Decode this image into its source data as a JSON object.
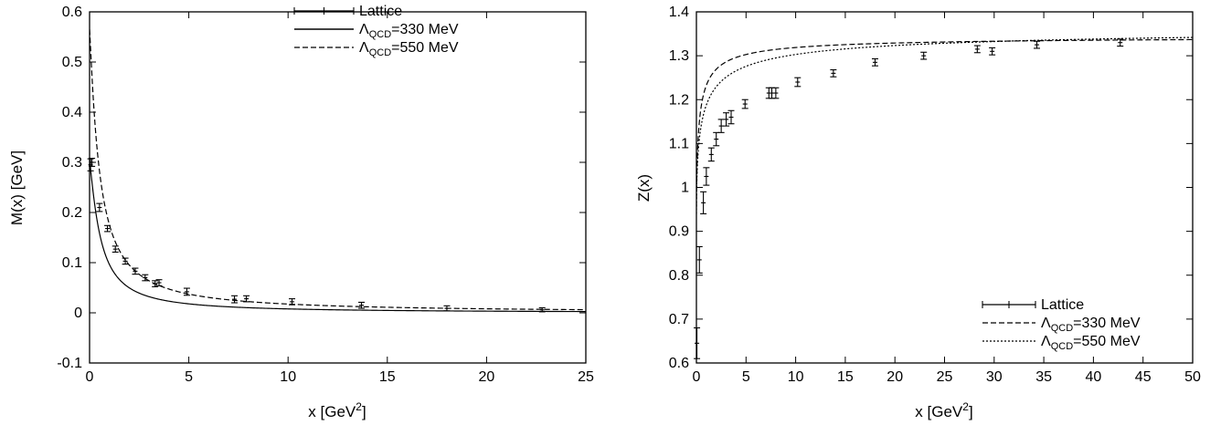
{
  "chart_data": [
    {
      "type": "line",
      "xlabel": "x [GeV",
      "xlabel_sup": "2",
      "xlabel_end": "]",
      "ylabel": "M(x) [GeV]",
      "xlim": [
        0,
        25
      ],
      "ylim": [
        -0.1,
        0.6
      ],
      "xticks": [
        "0",
        "5",
        "10",
        "15",
        "20",
        "25"
      ],
      "yticks": [
        "-0.1",
        "0",
        "0.1",
        "0.2",
        "0.3",
        "0.4",
        "0.5",
        "0.6"
      ],
      "grid": false,
      "legend_position": "top-right",
      "legend": [
        {
          "kind": "errorbar",
          "label": "Lattice"
        },
        {
          "kind": "solid",
          "prefix": "Λ",
          "sub": "QCD",
          "rest": "=330 MeV"
        },
        {
          "kind": "dashed",
          "prefix": "Λ",
          "sub": "QCD",
          "rest": "=550 MeV"
        }
      ],
      "lattice": {
        "x": [
          0.05,
          0.12,
          0.5,
          0.9,
          1.3,
          1.8,
          2.3,
          2.8,
          3.3,
          3.5,
          4.9,
          7.3,
          7.9,
          10.2,
          13.7,
          18.0,
          22.8
        ],
        "y": [
          0.295,
          0.3,
          0.21,
          0.168,
          0.127,
          0.103,
          0.083,
          0.07,
          0.058,
          0.06,
          0.042,
          0.027,
          0.028,
          0.022,
          0.015,
          0.009,
          0.006
        ],
        "err": [
          0.012,
          0.008,
          0.008,
          0.006,
          0.006,
          0.006,
          0.006,
          0.006,
          0.006,
          0.006,
          0.007,
          0.007,
          0.006,
          0.006,
          0.006,
          0.005,
          0.004
        ]
      },
      "curves": [
        {
          "style": "solid",
          "M0": 0.3,
          "a": 0.55,
          "p": 1.25
        },
        {
          "style": "dashed",
          "M0": 0.565,
          "a": 0.5,
          "p": 1.15
        }
      ]
    },
    {
      "type": "line",
      "xlabel": "x [GeV",
      "xlabel_sup": "2",
      "xlabel_end": "]",
      "ylabel": "Z(x)",
      "xlim": [
        0,
        50
      ],
      "ylim": [
        0.6,
        1.4
      ],
      "xticks": [
        "0",
        "5",
        "10",
        "15",
        "20",
        "25",
        "30",
        "35",
        "40",
        "45",
        "50"
      ],
      "yticks": [
        "0.6",
        "0.7",
        "0.8",
        "0.9",
        "1",
        "1.1",
        "1.2",
        "1.3",
        "1.4"
      ],
      "grid": false,
      "legend_position": "bottom-right",
      "legend": [
        {
          "kind": "errorbar",
          "label": "Lattice"
        },
        {
          "kind": "dashed",
          "prefix": "Λ",
          "sub": "QCD",
          "rest": "=330 MeV"
        },
        {
          "kind": "dotted",
          "prefix": "Λ",
          "sub": "QCD",
          "rest": "=550 MeV"
        }
      ],
      "lattice": {
        "x": [
          0.05,
          0.3,
          0.7,
          1.0,
          1.5,
          2.0,
          2.5,
          3.0,
          3.5,
          4.9,
          7.3,
          7.6,
          8.0,
          10.2,
          13.8,
          18.0,
          22.9,
          28.3,
          29.8,
          34.3,
          42.7
        ],
        "y": [
          0.645,
          0.835,
          0.965,
          1.025,
          1.075,
          1.11,
          1.14,
          1.155,
          1.16,
          1.19,
          1.215,
          1.215,
          1.215,
          1.24,
          1.26,
          1.285,
          1.3,
          1.315,
          1.31,
          1.325,
          1.33
        ],
        "err": [
          0.035,
          0.03,
          0.025,
          0.02,
          0.015,
          0.015,
          0.015,
          0.015,
          0.015,
          0.01,
          0.012,
          0.012,
          0.012,
          0.01,
          0.008,
          0.008,
          0.008,
          0.008,
          0.008,
          0.008,
          0.008
        ]
      },
      "curves": [
        {
          "style": "dashed",
          "Zinf": 1.345,
          "A": 0.39,
          "b": 0.3,
          "p": 0.75
        },
        {
          "style": "dotted",
          "Zinf": 1.37,
          "A": 0.43,
          "b": 0.6,
          "p": 0.6
        }
      ]
    }
  ]
}
